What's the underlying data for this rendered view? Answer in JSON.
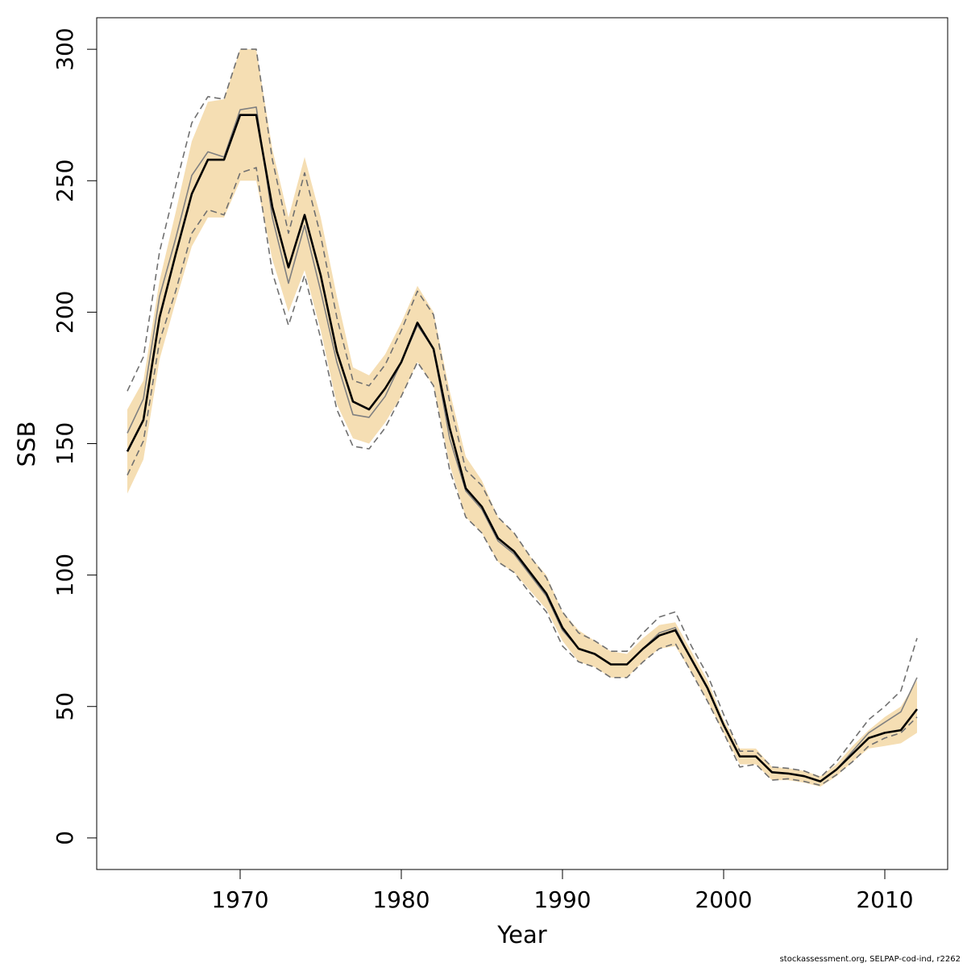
{
  "footer_text": "stockassessment.org, SELPAP-cod-ind, r2262",
  "chart_data": {
    "type": "line",
    "title": "",
    "xlabel": "Year",
    "ylabel": "SSB",
    "xlim": [
      1961.1,
      2013.9
    ],
    "ylim": [
      -12,
      312
    ],
    "x_ticks": [
      1970,
      1980,
      1990,
      2000,
      2010
    ],
    "y_ticks": [
      0,
      50,
      100,
      150,
      200,
      250,
      300
    ],
    "grid": false,
    "legend": "none",
    "colors": {
      "band_fill": "#F5DEB3",
      "main_line": "#000000",
      "alt_line": "#808080",
      "dashed_line": "#707070"
    },
    "x": [
      1963,
      1964,
      1965,
      1966,
      1967,
      1968,
      1969,
      1970,
      1971,
      1972,
      1973,
      1974,
      1975,
      1976,
      1977,
      1978,
      1979,
      1980,
      1981,
      1982,
      1983,
      1984,
      1985,
      1986,
      1987,
      1988,
      1989,
      1990,
      1991,
      1992,
      1993,
      1994,
      1995,
      1996,
      1997,
      1998,
      1999,
      2000,
      2001,
      2002,
      2003,
      2004,
      2005,
      2006,
      2007,
      2008,
      2009,
      2010,
      2011,
      2012
    ],
    "series": [
      {
        "role": "estimate",
        "values": [
          147,
          159,
          198,
          222,
          245,
          258,
          258,
          275,
          275,
          240,
          217,
          237,
          214,
          185,
          166,
          163,
          171,
          181,
          196,
          186,
          156,
          133,
          126,
          114,
          109,
          101,
          93,
          80,
          72,
          70,
          66,
          66,
          72,
          77,
          79,
          68,
          57,
          43,
          31,
          31,
          25,
          24.5,
          23.5,
          21.5,
          26,
          32,
          38,
          40,
          41,
          49
        ]
      },
      {
        "role": "band_upper",
        "values": [
          163,
          174,
          212,
          238,
          265,
          280,
          281,
          300,
          300,
          262,
          236,
          259,
          236,
          206,
          179,
          176,
          184,
          196,
          210,
          200,
          170,
          145,
          136,
          122,
          116,
          107,
          100,
          86,
          79,
          75,
          71,
          70,
          76,
          81,
          82,
          71,
          60,
          45,
          34,
          34,
          27,
          26.5,
          25.5,
          23.5,
          28,
          35,
          41,
          46,
          50,
          60
        ]
      },
      {
        "role": "band_lower",
        "values": [
          131,
          144,
          182,
          204,
          225,
          236,
          236,
          250,
          250,
          220,
          200,
          216,
          193,
          165,
          152,
          150,
          158,
          168,
          181,
          172,
          142,
          122,
          116,
          105,
          101,
          94,
          87,
          75,
          67,
          65,
          61,
          61,
          67,
          72,
          73,
          63,
          52,
          40,
          28,
          28,
          22,
          22,
          21,
          19.5,
          23.5,
          29,
          34,
          35,
          36,
          40
        ]
      },
      {
        "role": "alt_estimate",
        "values": [
          154,
          167,
          206,
          228,
          252,
          261,
          259,
          277,
          278,
          236,
          211,
          233,
          208,
          181,
          161,
          160,
          168,
          181,
          195,
          186,
          152,
          132,
          125,
          113,
          108,
          100,
          92,
          79,
          72,
          70,
          66,
          66,
          72,
          78,
          80,
          68,
          57,
          43,
          31,
          31,
          25,
          24.5,
          23.5,
          21.5,
          26,
          33,
          40,
          44,
          48,
          61
        ]
      },
      {
        "role": "dashed_upper",
        "values": [
          170,
          183,
          223,
          248,
          272,
          282,
          281,
          300,
          300,
          258,
          230,
          253,
          229,
          198,
          174,
          172,
          180,
          193,
          208,
          199,
          166,
          140,
          134,
          122,
          116,
          107,
          99,
          86,
          78,
          75,
          71,
          71,
          78,
          84,
          86,
          73,
          62,
          47,
          33,
          33,
          27,
          26.5,
          25.5,
          23,
          29,
          37,
          45,
          50,
          56,
          76
        ]
      },
      {
        "role": "dashed_lower",
        "values": [
          138,
          151,
          189,
          208,
          230,
          239,
          237,
          253,
          255,
          215,
          195,
          214,
          190,
          163,
          149,
          148,
          156,
          168,
          181,
          172,
          140,
          122,
          116,
          105,
          101,
          93,
          86,
          73,
          67,
          65,
          61,
          61,
          67,
          72,
          74,
          63,
          52,
          40,
          27,
          28,
          22,
          22.5,
          21.5,
          20,
          24,
          29,
          35,
          38,
          40,
          46
        ]
      }
    ]
  }
}
